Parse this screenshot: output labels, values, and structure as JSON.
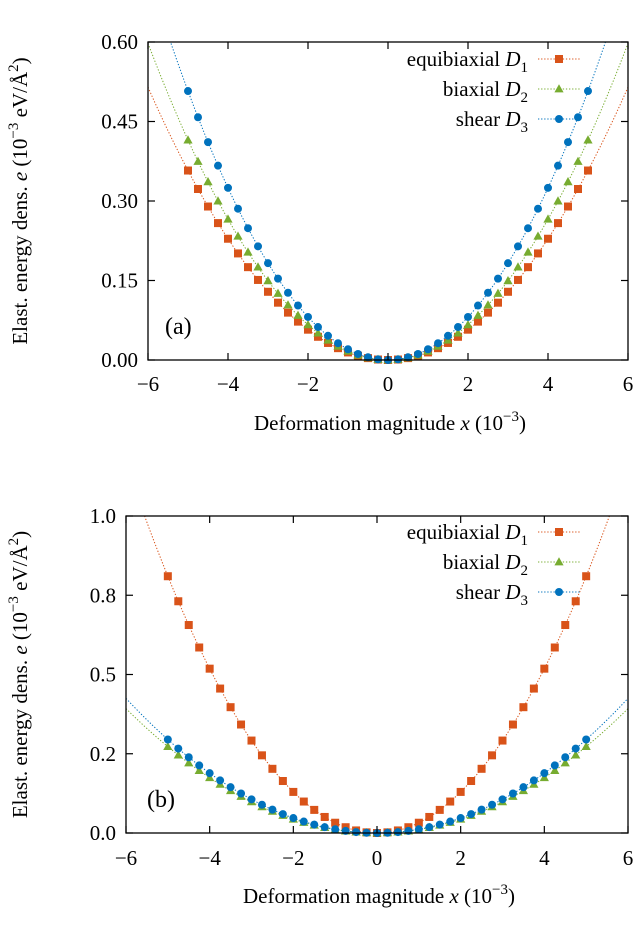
{
  "chart_data": [
    {
      "type": "scatter",
      "panel_label": "(a)",
      "xlabel": "Deformation magnitude x (10−3)",
      "ylabel": "Elast. energy dens. e (10−3 eV/Å2)",
      "xlim": [
        -6,
        6
      ],
      "ylim": [
        0,
        0.6
      ],
      "xticks": [
        -6,
        -4,
        -2,
        0,
        2,
        4,
        6
      ],
      "xtick_labels": [
        "−6",
        "−4",
        "−2",
        "0",
        "2",
        "4",
        "6"
      ],
      "yticks": [
        0,
        0.15,
        0.3,
        0.45,
        0.6
      ],
      "ytick_labels": [
        "0.00",
        "0.15",
        "0.30",
        "0.45",
        "0.60"
      ],
      "grid": false,
      "legend_position": "top-right",
      "x": [
        -5.0,
        -4.75,
        -4.5,
        -4.25,
        -4.0,
        -3.75,
        -3.5,
        -3.25,
        -3.0,
        -2.75,
        -2.5,
        -2.25,
        -2.0,
        -1.75,
        -1.5,
        -1.25,
        -1.0,
        -0.75,
        -0.5,
        -0.25,
        0.0,
        0.25,
        0.5,
        0.75,
        1.0,
        1.25,
        1.5,
        1.75,
        2.0,
        2.25,
        2.5,
        2.75,
        3.0,
        3.25,
        3.5,
        3.75,
        4.0,
        4.25,
        4.5,
        4.75,
        5.0
      ],
      "series": [
        {
          "name": "equibiaxial D1",
          "label_main": "equibiaxial ",
          "label_var": "D",
          "label_sub": "1",
          "color": "#d95319",
          "marker": "square",
          "coef": 0.0143
        },
        {
          "name": "biaxial D2",
          "label_main": "biaxial ",
          "label_var": "D",
          "label_sub": "2",
          "color": "#77ac30",
          "marker": "triangle",
          "coef": 0.0166
        },
        {
          "name": "shear D3",
          "label_main": "shear ",
          "label_var": "D",
          "label_sub": "3",
          "color": "#0072bd",
          "marker": "circle",
          "coef": 0.0203
        }
      ]
    },
    {
      "type": "scatter",
      "panel_label": "(b)",
      "xlabel": "Deformation magnitude x (10−3)",
      "ylabel": "Elast. energy dens. e (10−3 eV/Å2)",
      "xlim": [
        -6,
        6
      ],
      "ylim": [
        0,
        1.0
      ],
      "xticks": [
        -6,
        -4,
        -2,
        0,
        2,
        4,
        6
      ],
      "xtick_labels": [
        "−6",
        "−4",
        "−2",
        "0",
        "2",
        "4",
        "6"
      ],
      "yticks": [
        0,
        0.25,
        0.5,
        0.75,
        1.0
      ],
      "ytick_labels": [
        "0.0",
        "0.2",
        "0.5",
        "0.8",
        "1.0"
      ],
      "grid": false,
      "legend_position": "top-right",
      "x": [
        -5.0,
        -4.75,
        -4.5,
        -4.25,
        -4.0,
        -3.75,
        -3.5,
        -3.25,
        -3.0,
        -2.75,
        -2.5,
        -2.25,
        -2.0,
        -1.75,
        -1.5,
        -1.25,
        -1.0,
        -0.75,
        -0.5,
        -0.25,
        0.0,
        0.25,
        0.5,
        0.75,
        1.0,
        1.25,
        1.5,
        1.75,
        2.0,
        2.25,
        2.5,
        2.75,
        3.0,
        3.25,
        3.5,
        3.75,
        4.0,
        4.25,
        4.5,
        4.75,
        5.0
      ],
      "series": [
        {
          "name": "equibiaxial D1",
          "label_main": "equibiaxial ",
          "label_var": "D",
          "label_sub": "1",
          "color": "#d95319",
          "marker": "square",
          "coef": 0.0324
        },
        {
          "name": "biaxial D2",
          "label_main": "biaxial ",
          "label_var": "D",
          "label_sub": "2",
          "color": "#77ac30",
          "marker": "triangle",
          "coef": 0.0109
        },
        {
          "name": "shear D3",
          "label_main": "shear ",
          "label_var": "D",
          "label_sub": "3",
          "color": "#0072bd",
          "marker": "circle",
          "coef": 0.0118
        }
      ]
    }
  ]
}
